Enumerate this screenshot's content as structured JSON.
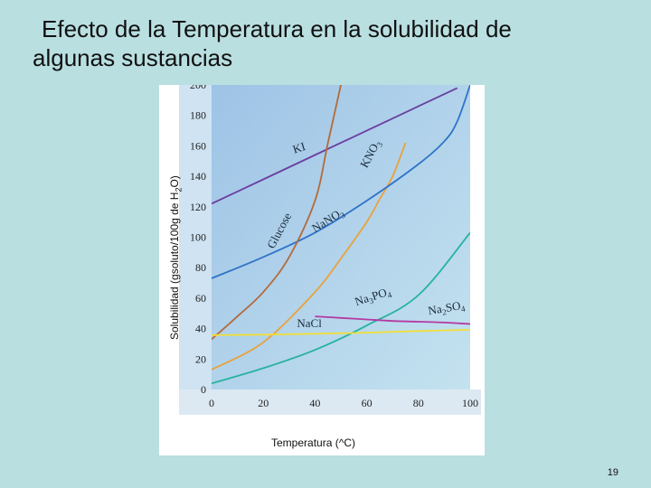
{
  "slide": {
    "title_line1": "Efecto de la Temperatura en la solubilidad de",
    "title_line2": "algunas sustancias",
    "page_number": "19"
  },
  "chart_data": {
    "type": "line",
    "xlabel": "Temperatura (^C)",
    "ylabel_main": "Solubilidad (gsoluto/100g de H",
    "ylabel_sub": "2",
    "ylabel_end": "O)",
    "xlim": [
      0,
      100
    ],
    "ylim": [
      0,
      200
    ],
    "x_ticks": [
      0,
      20,
      40,
      60,
      80,
      100
    ],
    "y_ticks": [
      0,
      20,
      40,
      60,
      80,
      100,
      120,
      140,
      160,
      180,
      200
    ],
    "grid": false,
    "plot_background": "#a9cdea",
    "series": [
      {
        "name": "KI",
        "color": "#6a3fa0",
        "x": [
          0,
          20,
          40,
          60,
          80,
          95
        ],
        "y": [
          122,
          138,
          154,
          170,
          186,
          198
        ]
      },
      {
        "name": "KNO3",
        "color": "#e9a23c",
        "x": [
          0,
          20,
          40,
          50,
          60,
          65,
          70,
          75
        ],
        "y": [
          13,
          31,
          64,
          86,
          110,
          125,
          140,
          162
        ]
      },
      {
        "name": "NaNO3",
        "color": "#2f73c9",
        "x": [
          0,
          20,
          40,
          60,
          80,
          90,
          95,
          100
        ],
        "y": [
          73,
          87,
          103,
          124,
          148,
          163,
          176,
          200
        ]
      },
      {
        "name": "Glucose",
        "color": "#b46a3a",
        "x": [
          0,
          10,
          20,
          30,
          40,
          45,
          50
        ],
        "y": [
          33,
          48,
          64,
          87,
          124,
          162,
          200
        ]
      },
      {
        "name": "Na3PO4",
        "color": "#27b2a0",
        "x": [
          0,
          20,
          40,
          60,
          80,
          100
        ],
        "y": [
          4,
          14,
          26,
          42,
          62,
          103
        ]
      },
      {
        "name": "Na2SO4",
        "color": "#b43aa3",
        "x": [
          40,
          50,
          60,
          70,
          80,
          90,
          100
        ],
        "y": [
          48,
          47,
          46,
          45,
          44.5,
          44,
          43
        ]
      },
      {
        "name": "NaCl",
        "color": "#f1df3a",
        "x": [
          0,
          20,
          40,
          60,
          80,
          100
        ],
        "y": [
          35.7,
          36,
          36.6,
          37.3,
          38.4,
          39.2
        ]
      }
    ],
    "annotations": [
      {
        "text": "KI",
        "x": 32,
        "y": 155,
        "rotate": -18
      },
      {
        "text": "KNO3",
        "x": 60,
        "y": 145,
        "rotate": -62
      },
      {
        "text": "NaNO3",
        "x": 40,
        "y": 103,
        "rotate": -32
      },
      {
        "text": "Glucose",
        "x": 24,
        "y": 92,
        "rotate": -62
      },
      {
        "text": "Na3PO4",
        "x": 56,
        "y": 55,
        "rotate": -18
      },
      {
        "text": "Na2SO4",
        "x": 84,
        "y": 49,
        "rotate": -10
      },
      {
        "text": "NaCl",
        "x": 33,
        "y": 41,
        "rotate": 0
      }
    ]
  }
}
